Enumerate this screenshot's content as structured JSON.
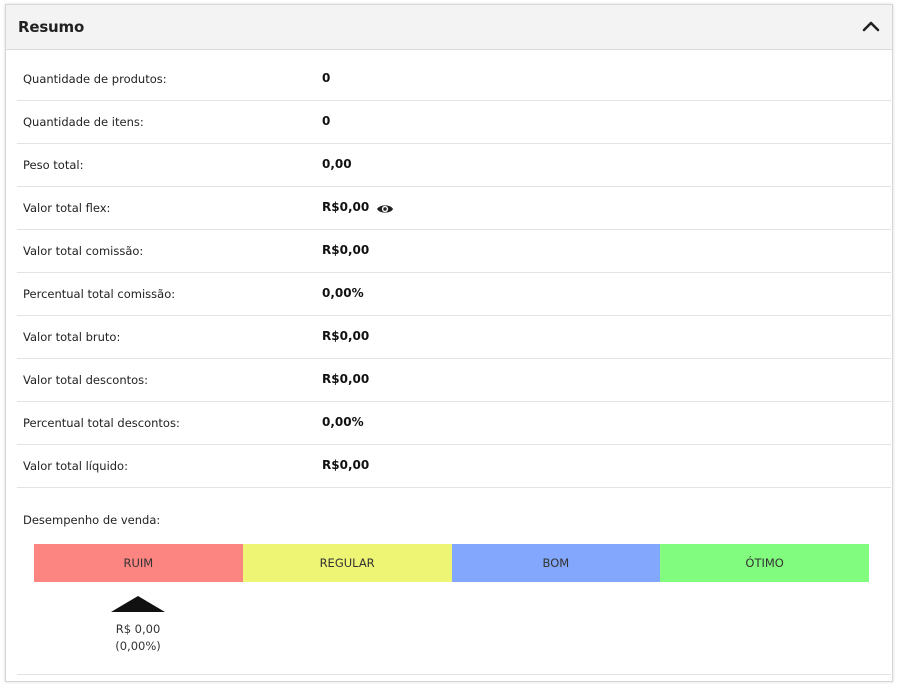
{
  "panel": {
    "title": "Resumo",
    "collapse_icon": "chevron-up-icon"
  },
  "rows": [
    {
      "label": "Quantidade de produtos:",
      "value": "0"
    },
    {
      "label": "Quantidade de itens:",
      "value": "0"
    },
    {
      "label": "Peso total:",
      "value": "0,00"
    },
    {
      "label": "Valor total flex:",
      "value": "R$0,00",
      "icon": "eye-icon"
    },
    {
      "label": "Valor total comissão:",
      "value": "R$0,00"
    },
    {
      "label": "Percentual total comissão:",
      "value": "0,00%"
    },
    {
      "label": "Valor total bruto:",
      "value": "R$0,00"
    },
    {
      "label": "Valor total descontos:",
      "value": "R$0,00"
    },
    {
      "label": "Percentual total descontos:",
      "value": "0,00%"
    },
    {
      "label": "Valor total líquido:",
      "value": "R$0,00"
    }
  ],
  "performance": {
    "label": "Desempenho de venda:",
    "segments": [
      {
        "label": "RUIM",
        "color": "#fc8582"
      },
      {
        "label": "REGULAR",
        "color": "#eef473"
      },
      {
        "label": "BOM",
        "color": "#82a7fc"
      },
      {
        "label": "ÓTIMO",
        "color": "#82fc7e"
      }
    ],
    "indicator": {
      "amount": "R$ 0,00",
      "percent": "(0,00%)"
    }
  }
}
